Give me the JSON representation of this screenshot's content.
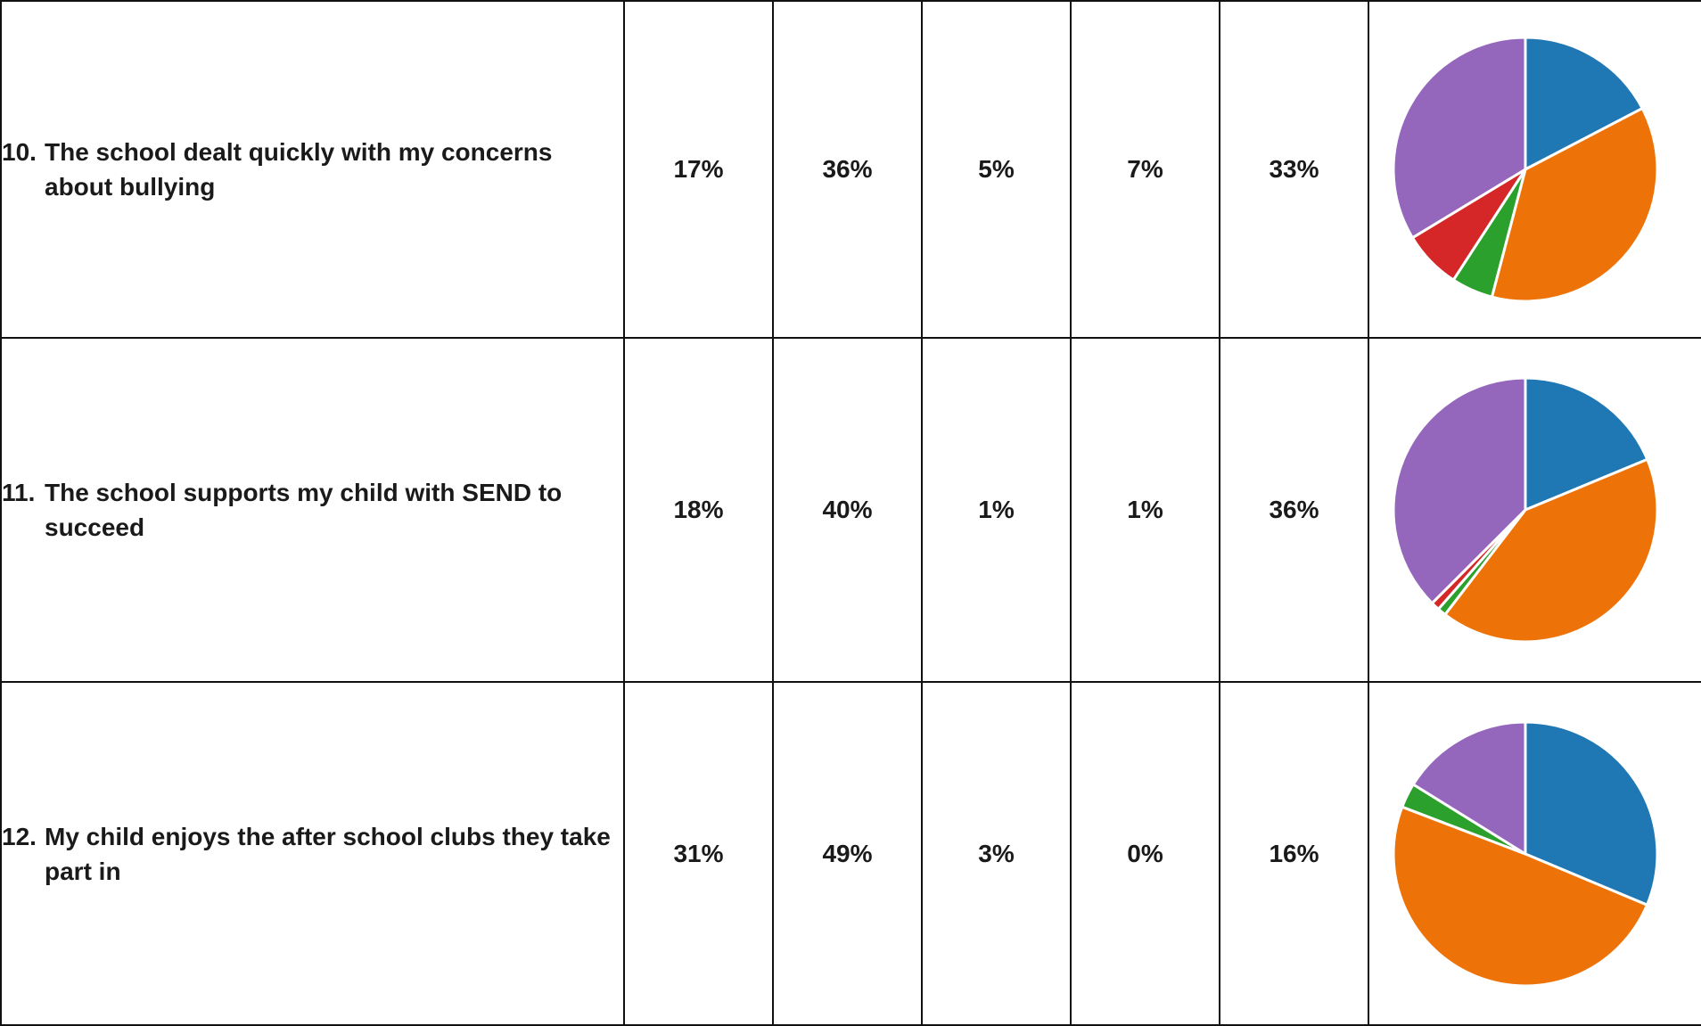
{
  "colors": {
    "strongly_agree": "#1f77b4",
    "agree": "#ed7207",
    "disagree": "#2ca02c",
    "strongly_disagree": "#d62728",
    "dont_know": "#9467bd"
  },
  "rows": [
    {
      "number": "10.",
      "question": "The school dealt quickly with my concerns about bullying",
      "values": [
        "17%",
        "36%",
        "5%",
        "7%",
        "33%"
      ]
    },
    {
      "number": "11.",
      "question": "The school supports my child with SEND to succeed",
      "values": [
        "18%",
        "40%",
        "1%",
        "1%",
        "36%"
      ]
    },
    {
      "number": "12.",
      "question": "My child enjoys the after school clubs they take part in",
      "values": [
        "31%",
        "49%",
        "3%",
        "0%",
        "16%"
      ]
    }
  ],
  "chart_data": [
    {
      "type": "pie",
      "values": [
        17,
        36,
        5,
        7,
        33
      ],
      "colors": [
        "#1f77b4",
        "#ed7207",
        "#2ca02c",
        "#d62728",
        "#9467bd"
      ]
    },
    {
      "type": "pie",
      "values": [
        18,
        40,
        1,
        1,
        36
      ],
      "colors": [
        "#1f77b4",
        "#ed7207",
        "#2ca02c",
        "#d62728",
        "#9467bd"
      ]
    },
    {
      "type": "pie",
      "values": [
        31,
        49,
        3,
        0,
        16
      ],
      "colors": [
        "#1f77b4",
        "#ed7207",
        "#2ca02c",
        "#d62728",
        "#9467bd"
      ]
    }
  ]
}
